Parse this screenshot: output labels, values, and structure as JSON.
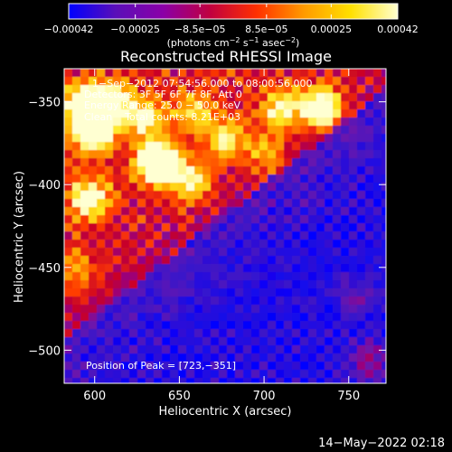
{
  "chart_data": {
    "type": "heatmap",
    "title": "Reconstructed RHESSI Image",
    "xlabel": "Heliocentric X (arcsec)",
    "ylabel": "Heliocentric Y (arcsec)",
    "xlim": [
      582,
      772
    ],
    "ylim": [
      -520,
      -330
    ],
    "x_ticks": [
      600,
      650,
      700,
      750
    ],
    "y_ticks": [
      -350,
      -400,
      -450,
      -500
    ],
    "x_tick_labels": [
      "600",
      "650",
      "700",
      "750"
    ],
    "y_tick_labels": [
      "−350",
      "−400",
      "−450",
      "−500"
    ],
    "colorbar": {
      "min": -0.00042,
      "max": 0.00042,
      "tick_values": [
        -0.00042,
        -0.00025,
        -8.5e-05,
        8.5e-05,
        0.00025,
        0.00042
      ],
      "tick_labels": [
        "−0.00042",
        "−0.00025",
        "−8.5e−05",
        "8.5e−05",
        "0.00025",
        "0.00042"
      ],
      "units_prefix": "(photons cm",
      "units_exp1": "−2",
      "units_mid1": " s",
      "units_exp2": "−1",
      "units_mid2": " asec",
      "units_exp3": "−2",
      "units_suffix": ")",
      "colors": [
        "#0000ff",
        "#5a0fb8",
        "#8a00a8",
        "#c00040",
        "#ff3000",
        "#ff9a00",
        "#ffe000",
        "#ffffd0"
      ]
    },
    "annotations": [
      "1−Sep−2012 07:54:56.000 to 08:00:56.000",
      "Detectors: 3F 5F 6F 7F 8F, Att 0",
      "Energy Range: 25.0 − 50.0 keV",
      "Clean    Total counts: 8.21E+03"
    ],
    "peak_label": "Position of Peak = [723,−351]",
    "peak": [
      723,
      -351
    ],
    "footer_date": "14−May−2022 02:18"
  }
}
